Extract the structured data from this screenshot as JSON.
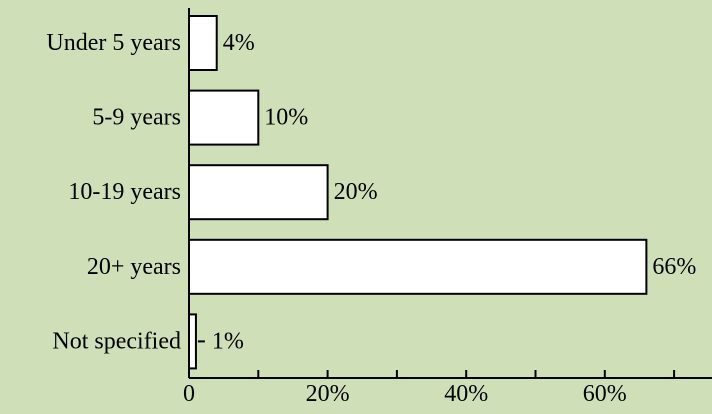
{
  "chart_data": {
    "type": "bar",
    "orientation": "horizontal",
    "categories": [
      "Under 5 years",
      "5-9 years",
      "10-19 years",
      "20+ years",
      "Not specified"
    ],
    "values": [
      4,
      10,
      20,
      66,
      1
    ],
    "value_labels": [
      "4%",
      "10%",
      "20%",
      "66%",
      "1%"
    ],
    "x_ticks": [
      0,
      10,
      20,
      30,
      40,
      50,
      60,
      70
    ],
    "x_tick_labels": [
      "0",
      "",
      "20%",
      "",
      "40%",
      "",
      "60%",
      ""
    ],
    "xlim": [
      0,
      74
    ],
    "title": "",
    "xlabel": "",
    "ylabel": "",
    "colors": {
      "background": "#cfe0b8",
      "bar_fill": "#ffffff",
      "bar_stroke": "#000000"
    },
    "grid": false,
    "legend": false
  }
}
